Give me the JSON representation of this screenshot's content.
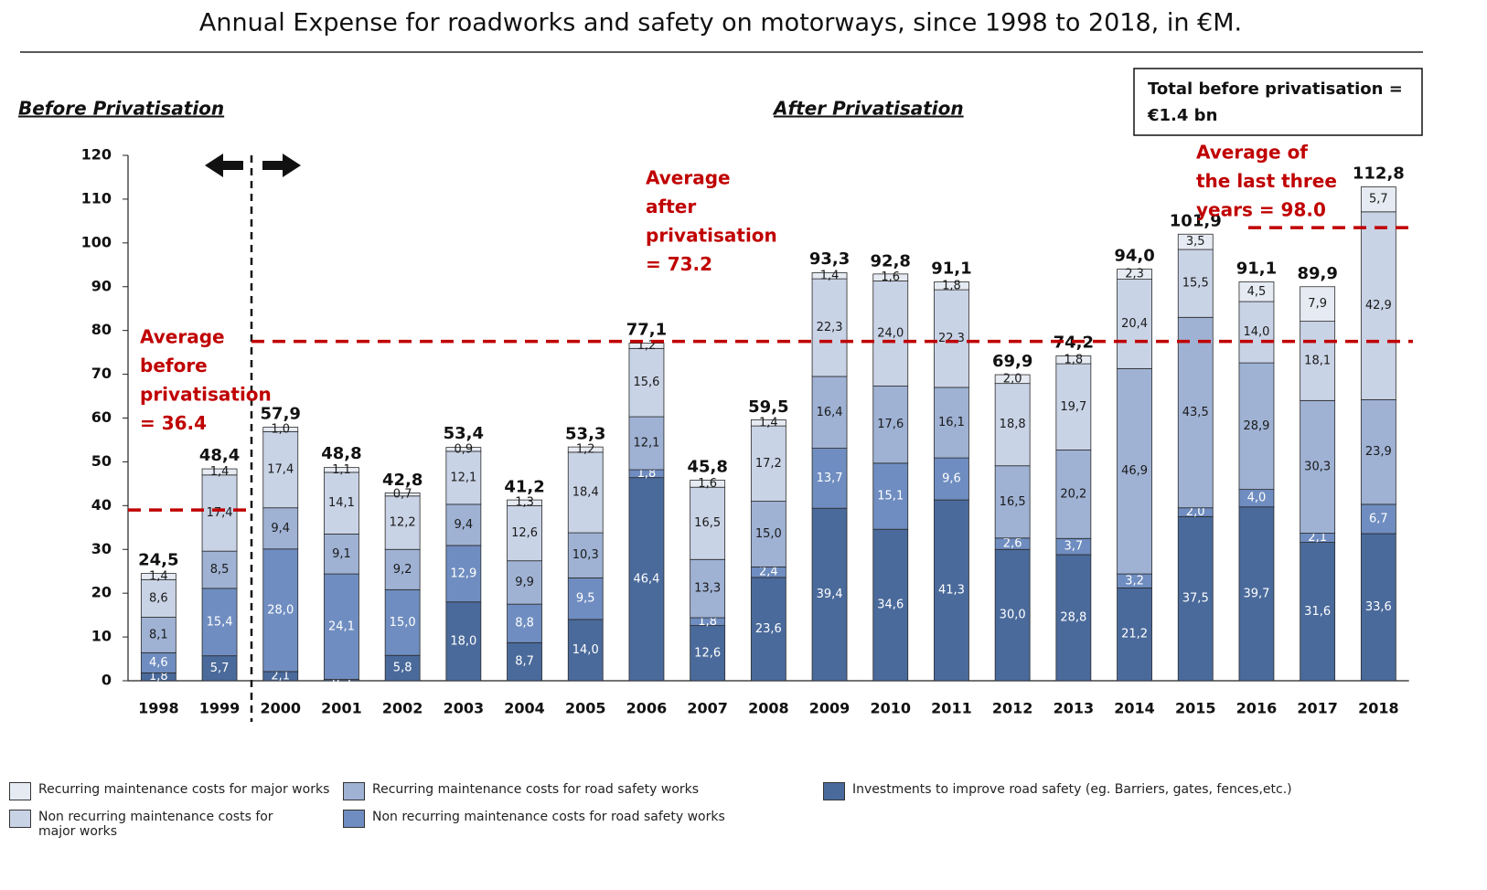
{
  "chart_data": {
    "type": "stacked_bar",
    "title": "Annual Expense for roadworks and safety on motorways, since 1998 to 2018, in €M.",
    "categories": [
      "1998",
      "1999",
      "2000",
      "2001",
      "2002",
      "2003",
      "2004",
      "2005",
      "2006",
      "2007",
      "2008",
      "2009",
      "2010",
      "2011",
      "2012",
      "2013",
      "2014",
      "2015",
      "2016",
      "2017",
      "2018"
    ],
    "series": [
      {
        "name": "Investments to improve road safety (eg. Barriers, gates, fences,etc.)",
        "color": "#4a6a9b",
        "label_color": "#ffffff",
        "values": [
          1.8,
          5.7,
          2.1,
          0.3,
          5.8,
          18.0,
          8.7,
          14.0,
          46.4,
          12.6,
          23.6,
          39.4,
          34.6,
          41.3,
          30.0,
          28.8,
          21.2,
          37.5,
          39.7,
          31.6,
          33.6
        ],
        "value_labels": [
          "1,8",
          "5,7",
          "2,1",
          "0,3",
          "5,8",
          "18,0",
          "8,7",
          "14,0",
          "46,4",
          "12,6",
          "23,6",
          "39,4",
          "34,6",
          "41,3",
          "30,0",
          "28,8",
          "21,2",
          "37,5",
          "39,7",
          "31,6",
          "33,6"
        ]
      },
      {
        "name": "Non recurring maintenance costs for road safety works",
        "color": "#6f8dc0",
        "label_color": "#ffffff",
        "values": [
          4.6,
          15.4,
          28.0,
          24.1,
          15.0,
          12.9,
          8.8,
          9.5,
          1.8,
          1.8,
          2.4,
          13.7,
          15.1,
          9.6,
          2.6,
          3.7,
          3.2,
          2.0,
          4.0,
          2.1,
          6.7
        ],
        "value_labels": [
          "4,6",
          "15,4",
          "28,0",
          "24,1",
          "15,0",
          "12,9",
          "8,8",
          "9,5",
          "1,8",
          "1,8",
          "2,4",
          "13,7",
          "15,1",
          "9,6",
          "2,6",
          "3,7",
          "3,2",
          "2,0",
          "4,0",
          "2,1",
          "6,7"
        ]
      },
      {
        "name": "Recurring maintenance costs for road safety works",
        "color": "#9fb2d4",
        "label_color": "#1a1a1a",
        "values": [
          8.1,
          8.5,
          9.4,
          9.1,
          9.2,
          9.4,
          9.9,
          10.3,
          12.1,
          13.3,
          15.0,
          16.4,
          17.6,
          16.1,
          16.5,
          20.2,
          46.9,
          43.5,
          28.9,
          30.3,
          23.9
        ],
        "value_labels": [
          "8,1",
          "8,5",
          "9,4",
          "9,1",
          "9,2",
          "9,4",
          "9,9",
          "10,3",
          "12,1",
          "13,3",
          "15,0",
          "16,4",
          "17,6",
          "16,1",
          "16,5",
          "20,2",
          "46,9",
          "43,5",
          "28,9",
          "30,3",
          "23,9"
        ]
      },
      {
        "name": "Non recurring maintenance costs for major works",
        "color": "#c9d3e6",
        "label_color": "#1a1a1a",
        "values": [
          8.6,
          17.4,
          17.4,
          14.1,
          12.2,
          12.1,
          12.6,
          18.4,
          15.6,
          16.5,
          17.2,
          22.3,
          24.0,
          22.3,
          18.8,
          19.7,
          20.4,
          15.5,
          14.0,
          18.1,
          42.9
        ],
        "value_labels": [
          "8,6",
          "17,4",
          "17,4",
          "14,1",
          "12,2",
          "12,1",
          "12,6",
          "18,4",
          "15,6",
          "16,5",
          "17,2",
          "22,3",
          "24,0",
          "22,3",
          "18,8",
          "19,7",
          "20,4",
          "15,5",
          "14,0",
          "18,1",
          "42,9"
        ]
      },
      {
        "name": "Recurring maintenance costs for major works",
        "color": "#e6ebf3",
        "label_color": "#1a1a1a",
        "values": [
          1.4,
          1.4,
          1.0,
          1.1,
          0.7,
          0.9,
          1.3,
          1.2,
          1.2,
          1.6,
          1.4,
          1.4,
          1.6,
          1.8,
          2.0,
          1.8,
          2.3,
          3.5,
          4.5,
          7.9,
          5.7
        ],
        "value_labels": [
          "1,4",
          "1,4",
          "1,0",
          "1,1",
          "0,7",
          "0,9",
          "1,3",
          "1,2",
          "1,2",
          "1,6",
          "1,4",
          "1,4",
          "1,6",
          "1,8",
          "2,0",
          "1,8",
          "2,3",
          "3,5",
          "4,5",
          "7,9",
          "5,7"
        ]
      }
    ],
    "totals": {
      "values": [
        24.5,
        48.4,
        57.9,
        48.8,
        42.8,
        53.4,
        41.2,
        53.3,
        77.1,
        45.8,
        59.5,
        93.3,
        92.8,
        91.1,
        69.9,
        74.2,
        94.0,
        101.9,
        91.1,
        89.9,
        112.8
      ],
      "value_labels": [
        "24,5",
        "48,4",
        "57,9",
        "48,8",
        "42,8",
        "53,4",
        "41,2",
        "53,3",
        "77,1",
        "45,8",
        "59,5",
        "93,3",
        "92,8",
        "91,1",
        "69,9",
        "74,2",
        "94,0",
        "101,9",
        "91,1",
        "89,9",
        "112,8"
      ]
    },
    "ylim": [
      0,
      120
    ],
    "yticks": [
      0,
      10,
      20,
      30,
      40,
      50,
      60,
      70,
      80,
      90,
      100,
      110,
      120
    ],
    "section_labels": [
      "Before Privatisation",
      "After Privatisation"
    ],
    "note": [
      "Total before privatisation =",
      "€1.4 bn"
    ],
    "reference_lines": [
      {
        "value": 39,
        "color": "#c00000",
        "text": [
          "Average",
          "before",
          "privatisation",
          "= 36.4"
        ]
      },
      {
        "value": 77.5,
        "color": "#c00000",
        "text": [
          "Average",
          "after",
          "privatisation",
          "= 73.2"
        ]
      },
      {
        "value": 103.5,
        "color": "#c00000",
        "text": [
          "Average of",
          "the last three",
          "years = 98.0"
        ]
      }
    ]
  }
}
